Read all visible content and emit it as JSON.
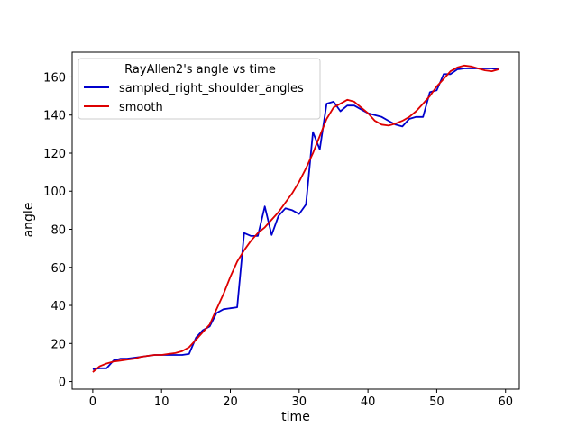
{
  "chart_data": {
    "type": "line",
    "title": "",
    "xlabel": "time",
    "ylabel": "angle",
    "xlim": [
      -3,
      62
    ],
    "ylim": [
      -4,
      173
    ],
    "xticks": [
      0,
      10,
      20,
      30,
      40,
      50,
      60
    ],
    "yticks": [
      0,
      20,
      40,
      60,
      80,
      100,
      120,
      140,
      160
    ],
    "grid": false,
    "legend": {
      "title": "RayAllen2's angle vs time",
      "position": "upper-left"
    },
    "series": [
      {
        "name": "sampled_right_shoulder_angles",
        "color": "#0000cc",
        "x": [
          0,
          1,
          2,
          3,
          4,
          5,
          6,
          7,
          8,
          9,
          10,
          11,
          12,
          13,
          14,
          15,
          16,
          17,
          18,
          19,
          20,
          21,
          22,
          23,
          24,
          25,
          26,
          27,
          28,
          29,
          30,
          31,
          32,
          33,
          34,
          35,
          36,
          37,
          38,
          39,
          40,
          41,
          42,
          43,
          44,
          45,
          46,
          47,
          48,
          49,
          50,
          51,
          52,
          53,
          54,
          55,
          56,
          57,
          58,
          59
        ],
        "y": [
          6.5,
          7,
          7,
          11,
          12,
          12,
          12.5,
          13,
          13.5,
          14,
          14,
          14,
          14,
          14,
          14.5,
          23,
          27,
          29,
          36,
          38,
          38.5,
          39,
          78,
          76.5,
          76.5,
          92,
          77,
          87,
          91,
          90,
          88,
          93,
          131,
          122,
          146,
          147,
          142,
          145,
          145,
          143,
          141,
          140,
          139,
          137,
          135,
          134,
          138,
          139,
          139,
          152,
          153,
          161.5,
          161.5,
          164,
          164.5,
          164.5,
          164.5,
          164.5,
          164.5,
          164
        ]
      },
      {
        "name": "smooth",
        "color": "#dd0000",
        "x": [
          0,
          1,
          2,
          3,
          4,
          5,
          6,
          7,
          8,
          9,
          10,
          11,
          12,
          13,
          14,
          15,
          16,
          17,
          18,
          19,
          20,
          21,
          22,
          23,
          24,
          25,
          26,
          27,
          28,
          29,
          30,
          31,
          32,
          33,
          34,
          35,
          36,
          37,
          38,
          39,
          40,
          41,
          42,
          43,
          44,
          45,
          46,
          47,
          48,
          49,
          50,
          51,
          52,
          53,
          54,
          55,
          56,
          57,
          58,
          59
        ],
        "y": [
          5,
          8,
          9.5,
          10.5,
          11,
          11.5,
          12,
          13,
          13.5,
          14,
          14,
          14.5,
          15,
          16,
          18,
          22,
          26,
          30,
          38,
          46,
          55,
          63,
          69,
          74,
          78,
          81,
          85,
          89,
          94,
          99,
          105,
          112,
          120,
          129,
          138,
          144,
          146,
          148,
          147,
          144,
          141,
          137,
          135,
          134.5,
          135.5,
          137,
          139,
          142,
          146,
          150,
          155,
          159,
          163,
          165,
          166,
          165.5,
          164.5,
          163.5,
          163,
          164
        ]
      }
    ]
  }
}
